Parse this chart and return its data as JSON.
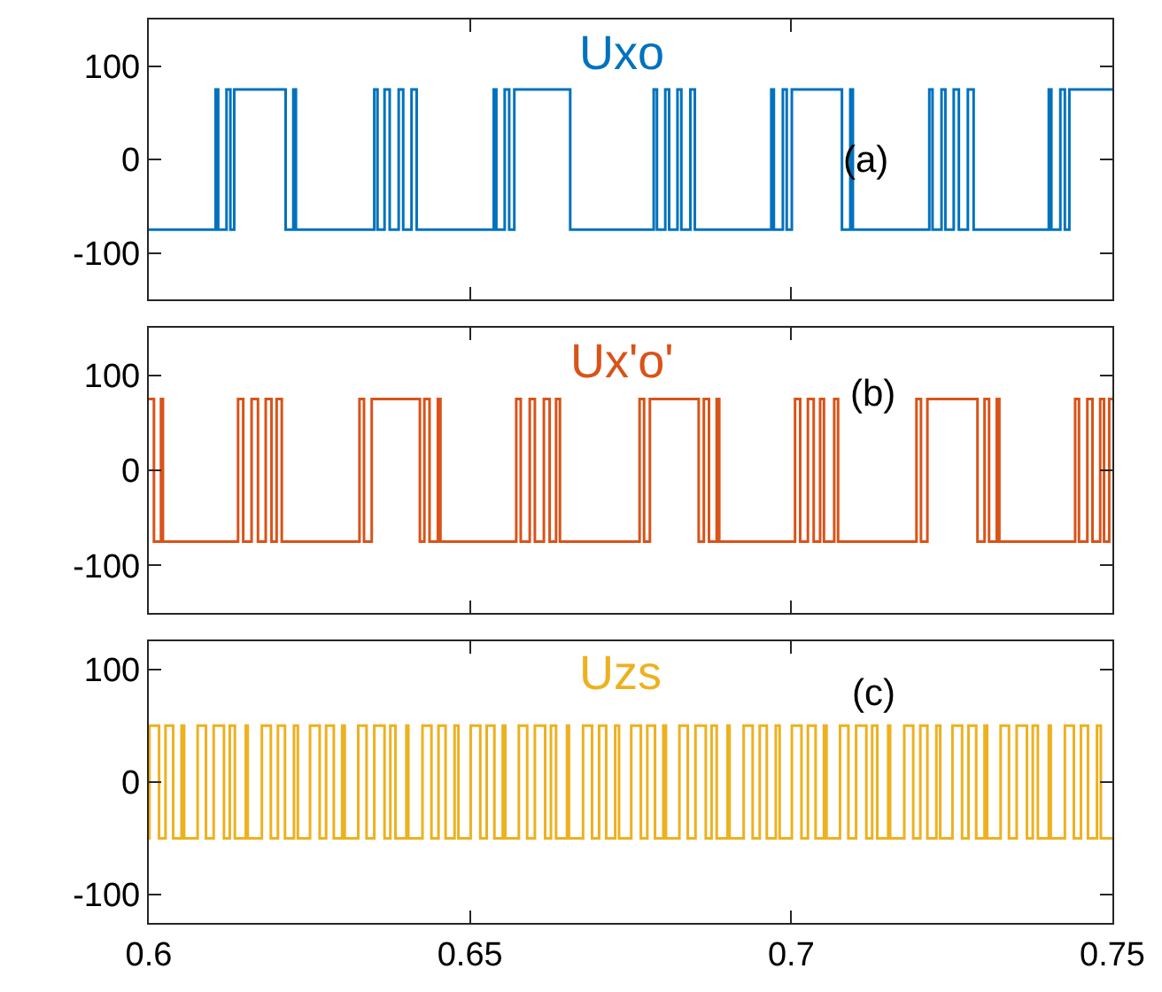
{
  "chart_data": [
    {
      "type": "step",
      "xlim": [
        0.6,
        0.75
      ],
      "xticks": [
        0.6,
        0.65,
        0.7,
        0.75
      ],
      "ylim": [
        -150,
        150
      ],
      "yticks": [
        -100,
        0,
        100
      ],
      "tick_labels": "y",
      "annotations": [
        "(a)"
      ],
      "series": [
        {
          "name": "Uxo",
          "color": "#0072bd",
          "x": [
            0.6,
            0.6104,
            0.6108,
            0.6121,
            0.6127,
            0.6133,
            0.6213,
            0.6225,
            0.6229,
            0.6351,
            0.6356,
            0.6367,
            0.6375,
            0.6389,
            0.6396,
            0.6409,
            0.6417,
            0.6537,
            0.6541,
            0.6554,
            0.6561,
            0.6569,
            0.6656,
            0.6786,
            0.6791,
            0.6804,
            0.681,
            0.6823,
            0.6829,
            0.6843,
            0.685,
            0.6969,
            0.6973,
            0.6987,
            0.6993,
            0.7001,
            0.7079,
            0.7092,
            0.7096,
            0.7215,
            0.722,
            0.7234,
            0.724,
            0.7253,
            0.7261,
            0.7275,
            0.7284,
            0.7401,
            0.7405,
            0.7419,
            0.7426,
            0.7433,
            0.75
          ],
          "values": [
            -75,
            75,
            -75,
            75,
            -75,
            75,
            -75,
            75,
            -75,
            75,
            -75,
            75,
            -75,
            75,
            -75,
            75,
            -75,
            75,
            -75,
            75,
            -75,
            75,
            -75,
            75,
            -75,
            75,
            -75,
            75,
            -75,
            75,
            -75,
            75,
            -75,
            75,
            -75,
            75,
            -75,
            75,
            -75,
            75,
            -75,
            75,
            -75,
            75,
            -75,
            75,
            -75,
            75,
            -75,
            75,
            -75,
            75,
            75
          ]
        }
      ]
    },
    {
      "type": "step",
      "xlim": [
        0.6,
        0.75
      ],
      "xticks": [
        0.6,
        0.65,
        0.7,
        0.75
      ],
      "ylim": [
        -150,
        150
      ],
      "yticks": [
        -100,
        0,
        100
      ],
      "tick_labels": "y",
      "annotations": [
        "(b)"
      ],
      "series": [
        {
          "name": "Ux'o'",
          "color": "#d95319",
          "x": [
            0.6,
            0.6008,
            0.6019,
            0.6022,
            0.6139,
            0.6147,
            0.616,
            0.617,
            0.6182,
            0.6191,
            0.6199,
            0.6207,
            0.6328,
            0.6335,
            0.6347,
            0.6422,
            0.6429,
            0.6437,
            0.645,
            0.6454,
            0.6572,
            0.6579,
            0.6593,
            0.6601,
            0.6615,
            0.6624,
            0.6634,
            0.664,
            0.6764,
            0.6771,
            0.678,
            0.6856,
            0.6864,
            0.6872,
            0.6884,
            0.6888,
            0.7006,
            0.7014,
            0.7026,
            0.7035,
            0.7045,
            0.7051,
            0.7067,
            0.7073,
            0.7195,
            0.7202,
            0.7212,
            0.729,
            0.7301,
            0.7308,
            0.732,
            0.7324,
            0.7442,
            0.7448,
            0.7461,
            0.7469,
            0.7481,
            0.7487,
            0.7495,
            0.75
          ],
          "values": [
            75,
            -75,
            75,
            -75,
            75,
            -75,
            75,
            -75,
            75,
            -75,
            75,
            -75,
            75,
            -75,
            75,
            -75,
            75,
            -75,
            75,
            -75,
            75,
            -75,
            75,
            -75,
            75,
            -75,
            75,
            -75,
            75,
            -75,
            75,
            -75,
            75,
            -75,
            75,
            -75,
            75,
            -75,
            75,
            -75,
            75,
            -75,
            75,
            -75,
            75,
            -75,
            75,
            -75,
            75,
            -75,
            75,
            -75,
            75,
            -75,
            75,
            -75,
            75,
            -75,
            75,
            75
          ]
        }
      ]
    },
    {
      "type": "step",
      "xlim": [
        0.6,
        0.75
      ],
      "xticks": [
        0.6,
        0.65,
        0.7,
        0.75
      ],
      "ylim": [
        -125,
        125
      ],
      "yticks": [
        -100,
        0,
        100
      ],
      "annotations": [
        "(c)"
      ],
      "series": [
        {
          "name": "Uzs",
          "color": "#edb120",
          "x": [
            0.6,
            0.6001,
            0.6016,
            0.6026,
            0.6038,
            0.6051,
            0.6055,
            0.6076,
            0.6089,
            0.6101,
            0.6117,
            0.6126,
            0.6134,
            0.6151,
            0.6154,
            0.6176,
            0.619,
            0.6201,
            0.6212,
            0.6226,
            0.6232,
            0.6251,
            0.6266,
            0.6276,
            0.6288,
            0.6301,
            0.6305,
            0.6326,
            0.6339,
            0.6351,
            0.6367,
            0.6376,
            0.6384,
            0.6401,
            0.6404,
            0.6426,
            0.644,
            0.6451,
            0.6462,
            0.6476,
            0.6482,
            0.6501,
            0.6516,
            0.6526,
            0.6538,
            0.6551,
            0.6555,
            0.6576,
            0.6589,
            0.6601,
            0.6617,
            0.6626,
            0.6634,
            0.6651,
            0.6654,
            0.6676,
            0.669,
            0.6701,
            0.6712,
            0.6726,
            0.6732,
            0.6751,
            0.6766,
            0.6776,
            0.6788,
            0.6801,
            0.6805,
            0.6826,
            0.6839,
            0.6851,
            0.6867,
            0.6876,
            0.6884,
            0.6901,
            0.6904,
            0.6926,
            0.694,
            0.6951,
            0.6962,
            0.6976,
            0.6982,
            0.7001,
            0.7016,
            0.7026,
            0.7038,
            0.7051,
            0.7055,
            0.7076,
            0.7089,
            0.7101,
            0.7117,
            0.7126,
            0.7134,
            0.7151,
            0.7154,
            0.7176,
            0.719,
            0.7201,
            0.7212,
            0.7226,
            0.7232,
            0.7251,
            0.7266,
            0.7276,
            0.7288,
            0.7301,
            0.7305,
            0.7326,
            0.7339,
            0.7351,
            0.7367,
            0.7376,
            0.7384,
            0.7401,
            0.7404,
            0.7426,
            0.744,
            0.7451,
            0.7462,
            0.7476,
            0.7482,
            0.75
          ],
          "values": [
            -50,
            50,
            -50,
            50,
            -50,
            50,
            -50,
            50,
            -50,
            50,
            -50,
            50,
            -50,
            50,
            -50,
            50,
            -50,
            50,
            -50,
            50,
            -50,
            50,
            -50,
            50,
            -50,
            50,
            -50,
            50,
            -50,
            50,
            -50,
            50,
            -50,
            50,
            -50,
            50,
            -50,
            50,
            -50,
            50,
            -50,
            50,
            -50,
            50,
            -50,
            50,
            -50,
            50,
            -50,
            50,
            -50,
            50,
            -50,
            50,
            -50,
            50,
            -50,
            50,
            -50,
            50,
            -50,
            50,
            -50,
            50,
            -50,
            50,
            -50,
            50,
            -50,
            50,
            -50,
            50,
            -50,
            50,
            -50,
            50,
            -50,
            50,
            -50,
            50,
            -50,
            50,
            -50,
            50,
            -50,
            50,
            -50,
            50,
            -50,
            50,
            -50,
            50,
            -50,
            50,
            -50,
            50,
            -50,
            50,
            -50,
            50,
            -50,
            50,
            -50,
            50,
            -50,
            50,
            -50,
            50,
            -50,
            50,
            -50,
            50,
            -50,
            50,
            -50,
            50,
            -50,
            50,
            -50,
            50,
            -50,
            -50
          ]
        }
      ]
    }
  ]
}
